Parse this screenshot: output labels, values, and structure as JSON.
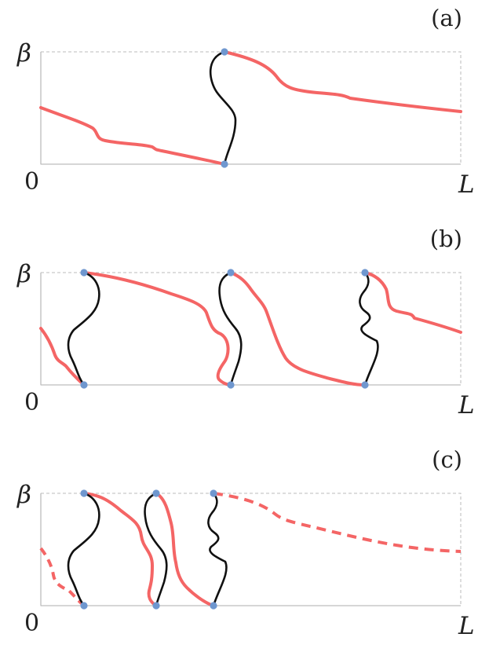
{
  "colors": {
    "red": "#f46565",
    "black": "#111111",
    "node": "#6f97cf",
    "axis": "#bdbdbd",
    "dashed": "#bbbbbb"
  },
  "axes": {
    "y_label": "β",
    "y_zero": "0",
    "x_end": "L"
  },
  "panels": [
    {
      "label": "(a)"
    },
    {
      "label": "(b)"
    },
    {
      "label": "(c)"
    }
  ]
}
